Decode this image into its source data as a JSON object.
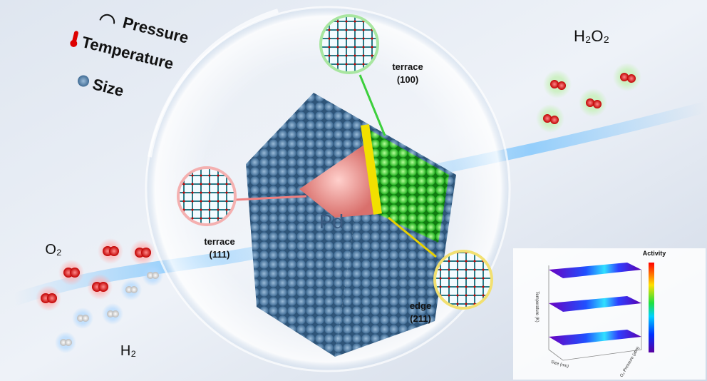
{
  "labels": {
    "pressure": "Pressure",
    "temperature": "Temperature",
    "size": "Size"
  },
  "product": "H₂O₂",
  "reactants": {
    "oxygen": "O₂",
    "hydrogen": "H₂"
  },
  "catalyst": "Pd",
  "facets": [
    {
      "name": "terrace",
      "index": "(100)"
    },
    {
      "name": "terrace",
      "index": "(111)"
    },
    {
      "name": "edge",
      "index": "(211)"
    }
  ],
  "plot": {
    "colorbar_title": "Activity",
    "axes": {
      "z": "Temperature (K)",
      "x": "Size (nm)",
      "y": "O₂ Pressure (atm)"
    }
  }
}
